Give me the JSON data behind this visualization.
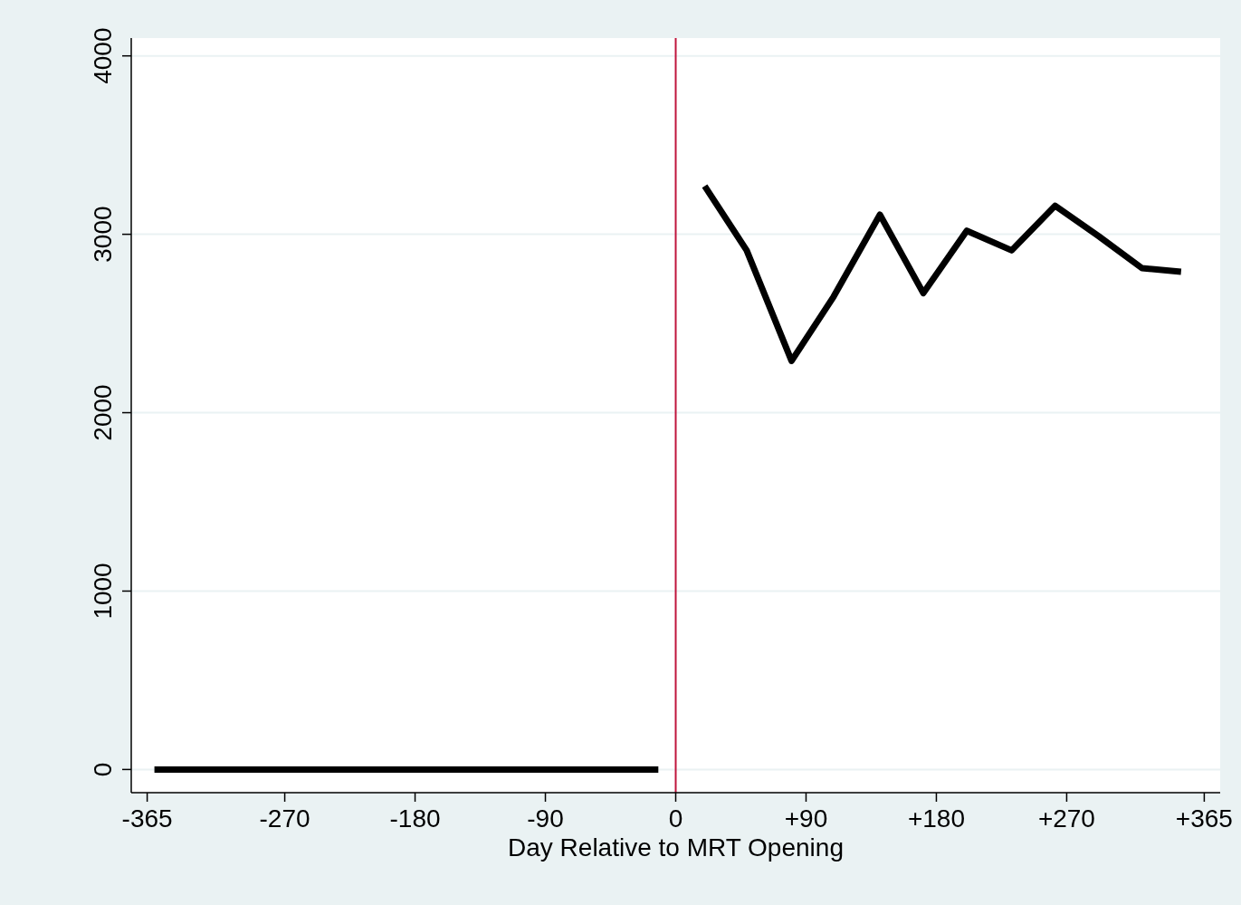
{
  "chart_data": {
    "type": "line",
    "xlabel": "Day Relative to MRT Opening",
    "x": [
      -360,
      -12,
      4,
      20,
      49,
      80,
      109,
      141,
      171,
      201,
      232,
      262,
      292,
      322,
      349
    ],
    "series": [
      {
        "color": "#000000",
        "values": [
          0,
          0,
          null,
          3270,
          2910,
          2290,
          2650,
          3110,
          2670,
          3020,
          2910,
          3160,
          2990,
          2810,
          2790
        ]
      }
    ],
    "xlim": [
      -376,
      376
    ],
    "xticks": [
      -365,
      -270,
      -180,
      -90,
      0,
      {
        "value": 90,
        "label": "+90"
      },
      {
        "value": 180,
        "label": "+180"
      },
      {
        "value": 270,
        "label": "+270"
      },
      {
        "value": 365,
        "label": "+365"
      }
    ],
    "ylim": [
      -130,
      4100
    ],
    "yticks": [
      0,
      1000,
      2000,
      3000,
      4000
    ],
    "grid": "y",
    "marker": "none",
    "line_style": "solid",
    "ref_lines": [
      {
        "axis": "x",
        "value": 0,
        "color": "#c0143c"
      }
    ]
  }
}
